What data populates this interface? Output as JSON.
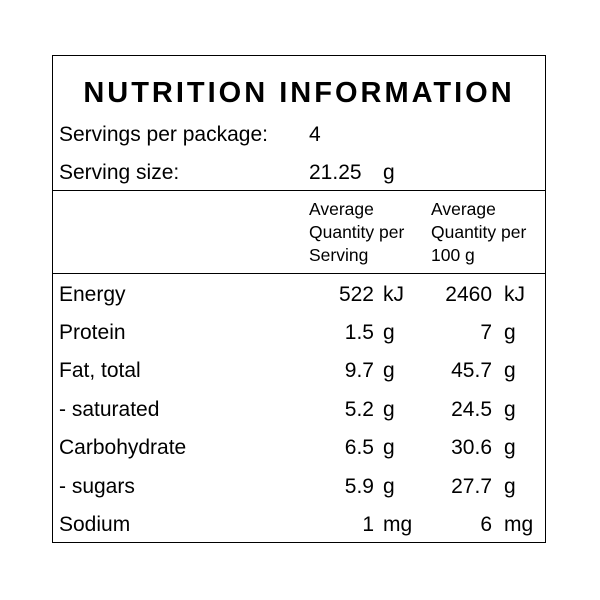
{
  "title": "NUTRITION INFORMATION",
  "servings": {
    "label": "Servings per package:",
    "value": "4"
  },
  "serving_size": {
    "label": "Serving size:",
    "value": "21.25",
    "unit": "g"
  },
  "columns": {
    "per_serving": [
      "Average",
      "Quantity per",
      "Serving"
    ],
    "per_100g": [
      "Average",
      "Quantity per",
      "100 g"
    ]
  },
  "rows": [
    {
      "name": "Energy",
      "serving": "522",
      "serving_unit": "kJ",
      "per100": "2460",
      "per100_unit": "kJ"
    },
    {
      "name": "Protein",
      "serving": "1.5",
      "serving_unit": "g",
      "per100": "7",
      "per100_unit": "g"
    },
    {
      "name": "Fat, total",
      "serving": "9.7",
      "serving_unit": "g",
      "per100": "45.7",
      "per100_unit": "g"
    },
    {
      "name": "- saturated",
      "serving": "5.2",
      "serving_unit": "g",
      "per100": "24.5",
      "per100_unit": "g"
    },
    {
      "name": "Carbohydrate",
      "serving": "6.5",
      "serving_unit": "g",
      "per100": "30.6",
      "per100_unit": "g"
    },
    {
      "name": "- sugars",
      "serving": "5.9",
      "serving_unit": "g",
      "per100": "27.7",
      "per100_unit": "g"
    },
    {
      "name": "Sodium",
      "serving": "1",
      "serving_unit": "mg",
      "per100": "6",
      "per100_unit": "mg"
    }
  ]
}
